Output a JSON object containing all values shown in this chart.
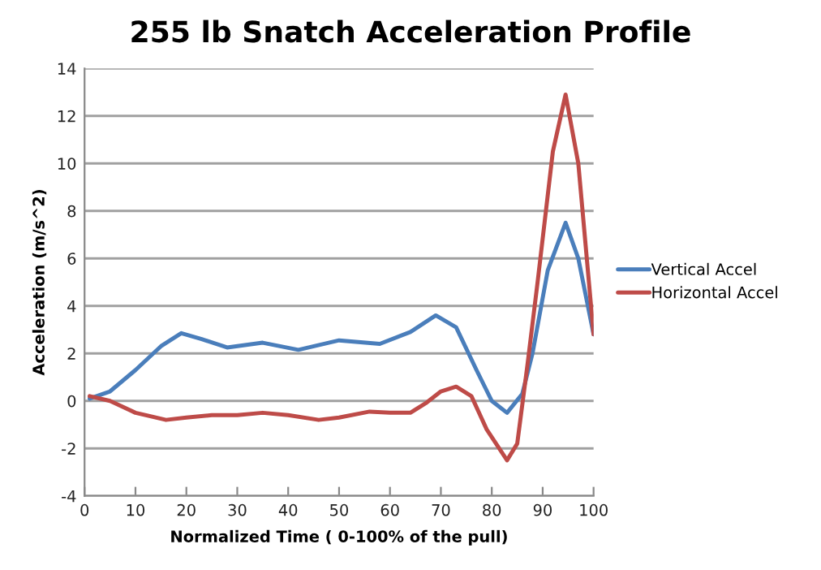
{
  "chart_data": {
    "type": "line",
    "title": "255 lb Snatch Acceleration Profile",
    "xlabel": "Normalized Time ( 0-100% of the pull)",
    "ylabel": "Acceleration (m/s^2)",
    "series": [
      {
        "name": "Vertical Accel",
        "color": "#4a7ebb",
        "x": [
          1,
          5,
          10,
          15,
          19,
          23,
          28,
          35,
          42,
          50,
          58,
          64,
          69,
          73,
          77,
          80,
          83,
          86,
          88,
          91,
          94.5,
          97,
          100
        ],
        "values": [
          0.1,
          0.4,
          1.3,
          2.3,
          2.85,
          2.6,
          2.25,
          2.45,
          2.15,
          2.55,
          2.4,
          2.9,
          3.6,
          3.1,
          1.3,
          0,
          -0.5,
          0.3,
          2,
          5.5,
          7.5,
          6,
          2.8
        ]
      },
      {
        "name": "Horizontal Accel",
        "color": "#be4b48",
        "x": [
          1,
          5,
          10,
          16,
          20,
          25,
          30,
          35,
          40,
          46,
          50,
          56,
          60,
          64,
          67,
          70,
          73,
          76,
          79,
          83,
          85,
          87,
          89,
          92,
          94.5,
          97,
          100
        ],
        "values": [
          0.2,
          0,
          -0.5,
          -0.8,
          -0.7,
          -0.6,
          -0.6,
          -0.5,
          -0.6,
          -0.8,
          -0.7,
          -0.45,
          -0.5,
          -0.5,
          -0.1,
          0.4,
          0.6,
          0.2,
          -1.2,
          -2.5,
          -1.8,
          1.5,
          5,
          10.5,
          12.9,
          10,
          2.8
        ]
      }
    ],
    "xlim": [
      0,
      100
    ],
    "xticks": [
      0,
      10,
      20,
      30,
      40,
      50,
      60,
      70,
      80,
      90,
      100
    ],
    "ylim": [
      -4,
      14
    ],
    "yticks": [
      -4,
      -2,
      0,
      2,
      4,
      6,
      8,
      10,
      12,
      14
    ],
    "grid": "y",
    "legend": "right",
    "marker": "none",
    "line_style": "solid"
  }
}
